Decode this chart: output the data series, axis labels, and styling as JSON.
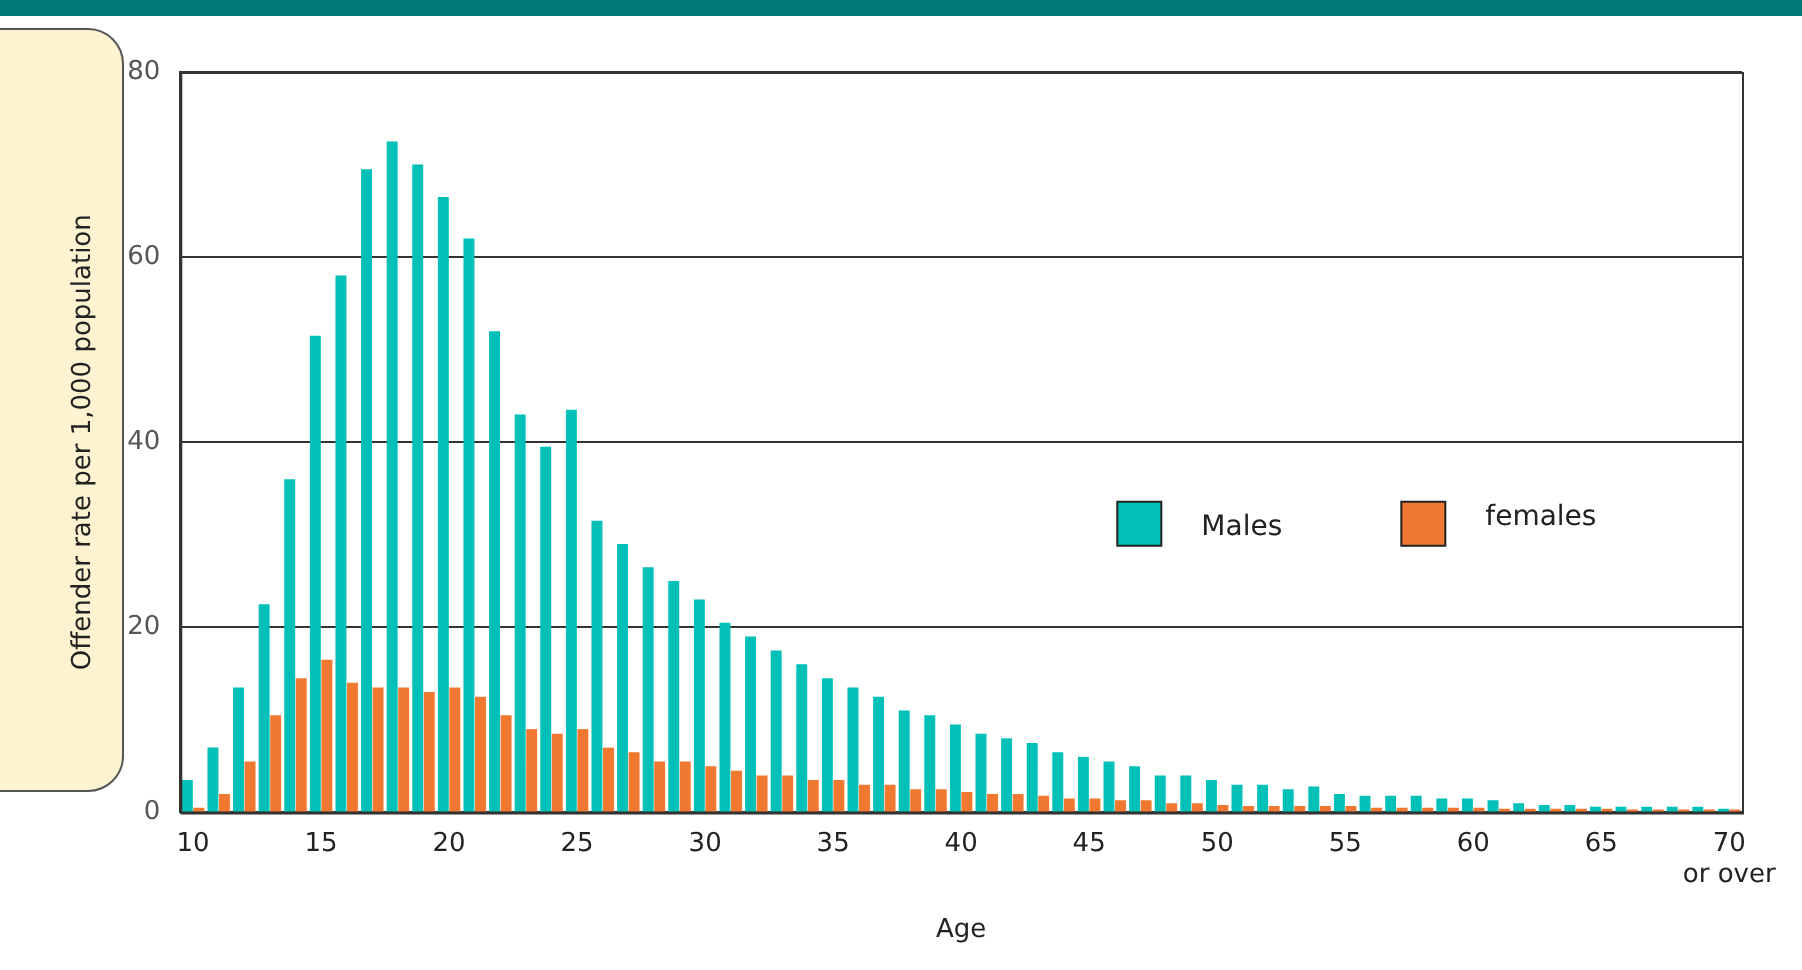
{
  "chart_data": {
    "type": "bar",
    "xlabel": "Age",
    "ylabel": "Offender rate per 1,000 population",
    "categories": [
      "10",
      null,
      null,
      null,
      null,
      "15",
      null,
      null,
      null,
      null,
      "20",
      null,
      null,
      null,
      null,
      "25",
      null,
      null,
      null,
      null,
      "30",
      null,
      null,
      null,
      null,
      "35",
      null,
      null,
      null,
      null,
      "40",
      null,
      null,
      null,
      null,
      "45",
      null,
      null,
      null,
      null,
      "50",
      null,
      null,
      null,
      null,
      "55",
      null,
      null,
      null,
      null,
      "60",
      null,
      null,
      null,
      null,
      "65",
      null,
      null,
      null,
      null,
      "70\nor over"
    ],
    "series": [
      {
        "name": "Males",
        "color": "#00c0b8",
        "values": [
          3.5,
          7,
          13.5,
          22.5,
          36,
          51.5,
          58,
          69.5,
          72.5,
          70,
          66.5,
          62,
          52,
          43,
          39.5,
          43.5,
          31.5,
          29,
          26.5,
          25,
          23,
          20.5,
          19,
          17.5,
          16,
          14.5,
          13.5,
          12.5,
          11,
          10.5,
          9.5,
          8.5,
          8,
          7.5,
          6.5,
          6,
          5.5,
          5,
          4,
          4,
          3.5,
          3,
          3,
          2.5,
          2.8,
          2,
          1.8,
          1.8,
          1.8,
          1.5,
          1.5,
          1.3,
          1,
          0.8,
          0.8,
          0.6,
          0.6,
          0.6,
          0.6,
          0.6,
          0.4
        ]
      },
      {
        "name": "females",
        "color": "#f07830",
        "values": [
          0.5,
          2,
          5.5,
          10.5,
          14.5,
          16.5,
          14,
          13.5,
          13.5,
          13,
          13.5,
          12.5,
          10.5,
          9,
          8.5,
          9,
          7,
          6.5,
          5.5,
          5.5,
          5,
          4.5,
          4,
          4,
          3.5,
          3.5,
          3,
          3,
          2.5,
          2.5,
          2.2,
          2,
          2,
          1.8,
          1.5,
          1.5,
          1.3,
          1.3,
          1,
          1,
          0.8,
          0.7,
          0.7,
          0.7,
          0.7,
          0.7,
          0.5,
          0.5,
          0.5,
          0.5,
          0.5,
          0.4,
          0.4,
          0.4,
          0.4,
          0.4,
          0.3,
          0.3,
          0.3,
          0.3,
          0.3
        ]
      }
    ],
    "ylim": [
      0,
      80
    ],
    "yticks": [
      0,
      20,
      40,
      60,
      80
    ],
    "grid": "y",
    "legend": "right"
  }
}
